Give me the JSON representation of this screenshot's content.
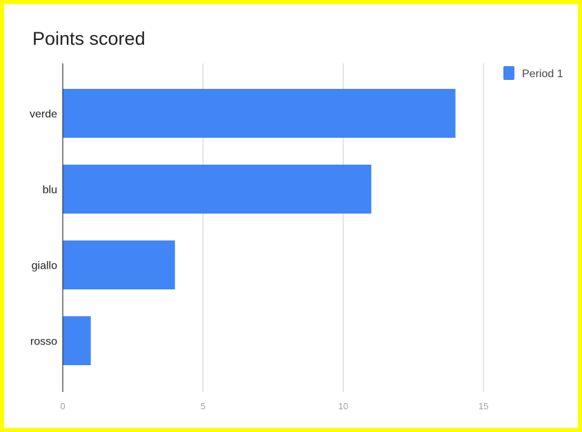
{
  "chart_data": {
    "type": "bar",
    "orientation": "horizontal",
    "title": "Points scored",
    "categories": [
      "verde",
      "blu",
      "giallo",
      "rosso"
    ],
    "series": [
      {
        "name": "Period 1",
        "color": "#4285f4",
        "values": [
          14,
          11,
          4,
          1
        ]
      }
    ],
    "x_ticks": [
      0,
      5,
      10,
      15
    ],
    "xlim": [
      0,
      17.7
    ],
    "grid": true,
    "legend_position": "top-right",
    "colors": {
      "frame": "#ffff00",
      "grid": "#cccccc",
      "axis": "#333333",
      "bar": "#4285f4"
    }
  }
}
